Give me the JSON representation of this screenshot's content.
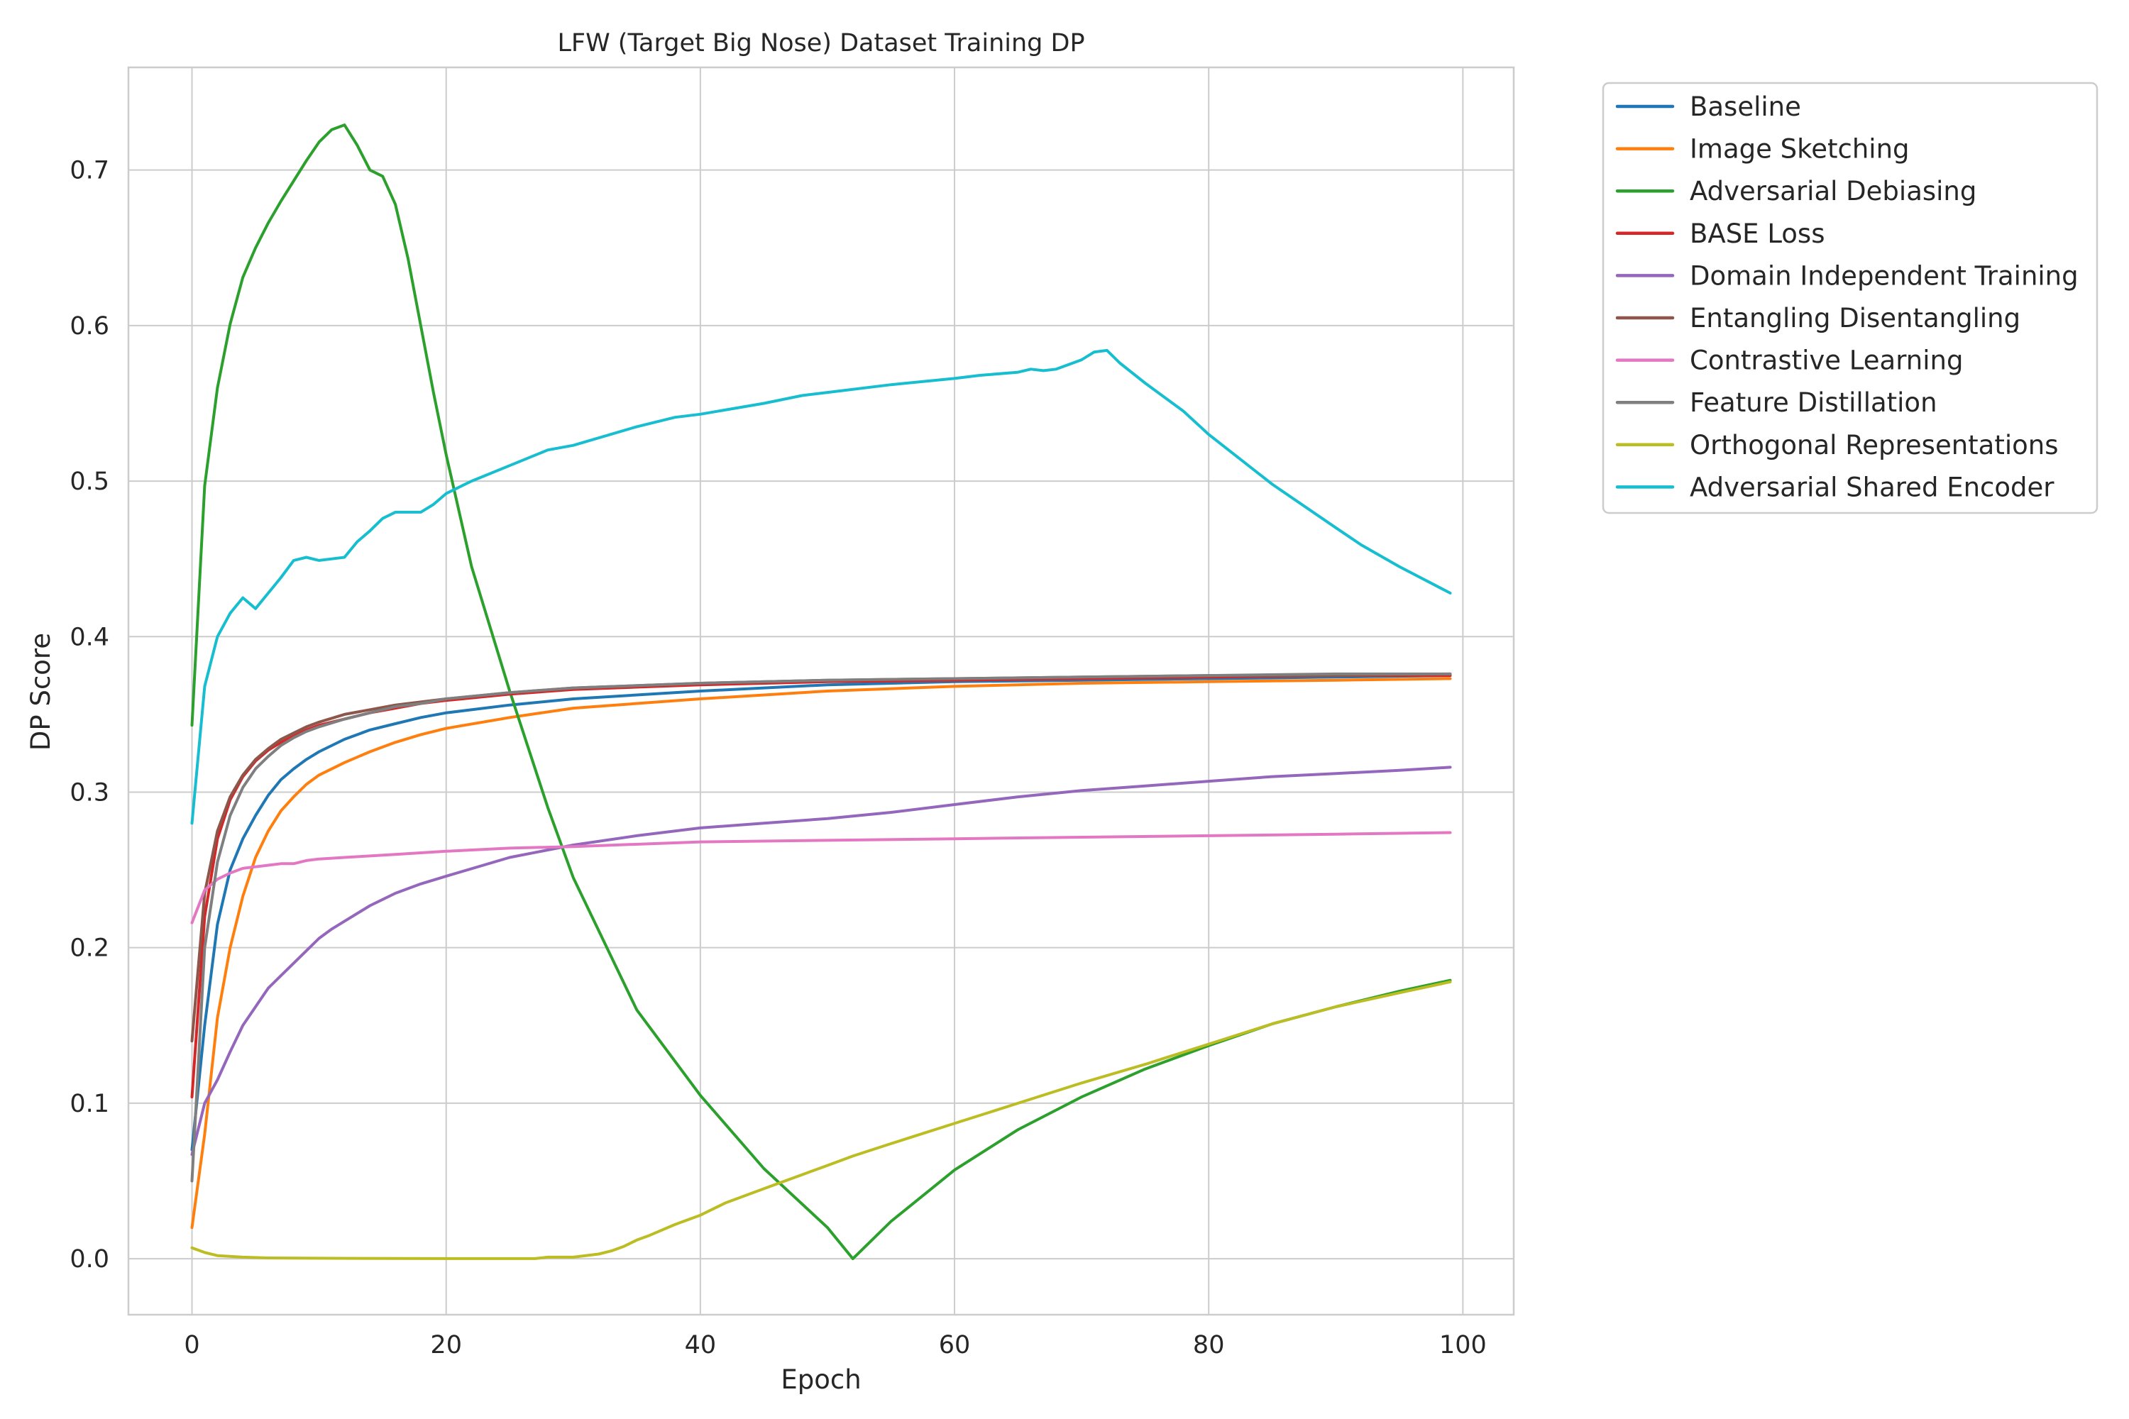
{
  "chart_data": {
    "type": "line",
    "title": "LFW (Target Big Nose) Dataset Training DP",
    "xlabel": "Epoch",
    "ylabel": "DP Score",
    "xlim": [
      -5,
      104
    ],
    "ylim": [
      -0.036,
      0.766
    ],
    "xticks": [
      0,
      20,
      40,
      60,
      80,
      100
    ],
    "yticks": [
      0.0,
      0.1,
      0.2,
      0.3,
      0.4,
      0.5,
      0.6,
      0.7
    ],
    "grid": true,
    "legend": "outside-top-right",
    "series": [
      {
        "name": "Baseline",
        "color": "#1f77b4",
        "points": [
          [
            0,
            0.07
          ],
          [
            1,
            0.15
          ],
          [
            2,
            0.215
          ],
          [
            3,
            0.25
          ],
          [
            4,
            0.27
          ],
          [
            5,
            0.285
          ],
          [
            6,
            0.298
          ],
          [
            7,
            0.308
          ],
          [
            8,
            0.315
          ],
          [
            9,
            0.321
          ],
          [
            10,
            0.326
          ],
          [
            12,
            0.334
          ],
          [
            14,
            0.34
          ],
          [
            16,
            0.344
          ],
          [
            18,
            0.348
          ],
          [
            20,
            0.351
          ],
          [
            25,
            0.356
          ],
          [
            30,
            0.36
          ],
          [
            40,
            0.365
          ],
          [
            50,
            0.369
          ],
          [
            60,
            0.371
          ],
          [
            70,
            0.372
          ],
          [
            80,
            0.373
          ],
          [
            90,
            0.374
          ],
          [
            99,
            0.375
          ]
        ]
      },
      {
        "name": "Image Sketching",
        "color": "#ff7f0e",
        "points": [
          [
            0,
            0.02
          ],
          [
            1,
            0.08
          ],
          [
            2,
            0.155
          ],
          [
            3,
            0.2
          ],
          [
            4,
            0.233
          ],
          [
            5,
            0.258
          ],
          [
            6,
            0.275
          ],
          [
            7,
            0.288
          ],
          [
            8,
            0.297
          ],
          [
            9,
            0.305
          ],
          [
            10,
            0.311
          ],
          [
            12,
            0.319
          ],
          [
            14,
            0.326
          ],
          [
            16,
            0.332
          ],
          [
            18,
            0.337
          ],
          [
            20,
            0.341
          ],
          [
            25,
            0.348
          ],
          [
            30,
            0.354
          ],
          [
            40,
            0.36
          ],
          [
            50,
            0.365
          ],
          [
            60,
            0.368
          ],
          [
            70,
            0.37
          ],
          [
            80,
            0.371
          ],
          [
            90,
            0.372
          ],
          [
            99,
            0.373
          ]
        ]
      },
      {
        "name": "Adversarial Debiasing",
        "color": "#2ca02c",
        "points": [
          [
            0,
            0.343
          ],
          [
            1,
            0.497
          ],
          [
            2,
            0.56
          ],
          [
            3,
            0.601
          ],
          [
            4,
            0.631
          ],
          [
            5,
            0.65
          ],
          [
            6,
            0.666
          ],
          [
            7,
            0.68
          ],
          [
            8,
            0.693
          ],
          [
            9,
            0.706
          ],
          [
            10,
            0.718
          ],
          [
            11,
            0.726
          ],
          [
            12,
            0.729
          ],
          [
            13,
            0.716
          ],
          [
            14,
            0.7
          ],
          [
            15,
            0.696
          ],
          [
            16,
            0.678
          ],
          [
            17,
            0.643
          ],
          [
            18,
            0.6
          ],
          [
            19,
            0.557
          ],
          [
            20,
            0.517
          ],
          [
            22,
            0.445
          ],
          [
            25,
            0.365
          ],
          [
            28,
            0.29
          ],
          [
            30,
            0.245
          ],
          [
            35,
            0.16
          ],
          [
            40,
            0.105
          ],
          [
            45,
            0.058
          ],
          [
            50,
            0.02
          ],
          [
            52,
            0.0
          ],
          [
            55,
            0.024
          ],
          [
            60,
            0.057
          ],
          [
            65,
            0.083
          ],
          [
            70,
            0.104
          ],
          [
            75,
            0.122
          ],
          [
            80,
            0.137
          ],
          [
            85,
            0.151
          ],
          [
            90,
            0.162
          ],
          [
            95,
            0.172
          ],
          [
            99,
            0.179
          ]
        ]
      },
      {
        "name": "BASE Loss",
        "color": "#d62728",
        "points": [
          [
            0,
            0.104
          ],
          [
            1,
            0.22
          ],
          [
            2,
            0.27
          ],
          [
            3,
            0.295
          ],
          [
            4,
            0.31
          ],
          [
            5,
            0.32
          ],
          [
            6,
            0.327
          ],
          [
            7,
            0.332
          ],
          [
            8,
            0.336
          ],
          [
            9,
            0.34
          ],
          [
            10,
            0.343
          ],
          [
            12,
            0.347
          ],
          [
            14,
            0.351
          ],
          [
            16,
            0.354
          ],
          [
            18,
            0.357
          ],
          [
            20,
            0.359
          ],
          [
            25,
            0.363
          ],
          [
            30,
            0.366
          ],
          [
            40,
            0.369
          ],
          [
            50,
            0.371
          ],
          [
            60,
            0.372
          ],
          [
            70,
            0.373
          ],
          [
            80,
            0.374
          ],
          [
            90,
            0.375
          ],
          [
            99,
            0.375
          ]
        ]
      },
      {
        "name": "Domain Independent Training",
        "color": "#9467bd",
        "points": [
          [
            0,
            0.067
          ],
          [
            1,
            0.1
          ],
          [
            2,
            0.115
          ],
          [
            3,
            0.133
          ],
          [
            4,
            0.15
          ],
          [
            5,
            0.162
          ],
          [
            6,
            0.174
          ],
          [
            7,
            0.182
          ],
          [
            8,
            0.19
          ],
          [
            9,
            0.198
          ],
          [
            10,
            0.206
          ],
          [
            11,
            0.212
          ],
          [
            12,
            0.217
          ],
          [
            14,
            0.227
          ],
          [
            16,
            0.235
          ],
          [
            18,
            0.241
          ],
          [
            20,
            0.246
          ],
          [
            25,
            0.258
          ],
          [
            30,
            0.266
          ],
          [
            35,
            0.272
          ],
          [
            40,
            0.277
          ],
          [
            45,
            0.28
          ],
          [
            50,
            0.283
          ],
          [
            55,
            0.287
          ],
          [
            60,
            0.292
          ],
          [
            65,
            0.297
          ],
          [
            70,
            0.301
          ],
          [
            75,
            0.304
          ],
          [
            80,
            0.307
          ],
          [
            85,
            0.31
          ],
          [
            90,
            0.312
          ],
          [
            95,
            0.314
          ],
          [
            99,
            0.316
          ]
        ]
      },
      {
        "name": "Entangling Disentangling",
        "color": "#8c564b",
        "points": [
          [
            0,
            0.14
          ],
          [
            1,
            0.235
          ],
          [
            2,
            0.275
          ],
          [
            3,
            0.297
          ],
          [
            4,
            0.311
          ],
          [
            5,
            0.321
          ],
          [
            6,
            0.328
          ],
          [
            7,
            0.334
          ],
          [
            8,
            0.338
          ],
          [
            9,
            0.342
          ],
          [
            10,
            0.345
          ],
          [
            12,
            0.35
          ],
          [
            14,
            0.353
          ],
          [
            16,
            0.356
          ],
          [
            18,
            0.358
          ],
          [
            20,
            0.36
          ],
          [
            25,
            0.364
          ],
          [
            30,
            0.367
          ],
          [
            40,
            0.37
          ],
          [
            50,
            0.372
          ],
          [
            60,
            0.373
          ],
          [
            70,
            0.374
          ],
          [
            80,
            0.375
          ],
          [
            90,
            0.375
          ],
          [
            99,
            0.376
          ]
        ]
      },
      {
        "name": "Contrastive Learning",
        "color": "#e377c2",
        "points": [
          [
            0,
            0.216
          ],
          [
            1,
            0.237
          ],
          [
            2,
            0.244
          ],
          [
            3,
            0.248
          ],
          [
            4,
            0.251
          ],
          [
            5,
            0.252
          ],
          [
            6,
            0.253
          ],
          [
            7,
            0.254
          ],
          [
            8,
            0.254
          ],
          [
            9,
            0.256
          ],
          [
            10,
            0.257
          ],
          [
            12,
            0.258
          ],
          [
            14,
            0.259
          ],
          [
            16,
            0.26
          ],
          [
            18,
            0.261
          ],
          [
            20,
            0.262
          ],
          [
            25,
            0.264
          ],
          [
            30,
            0.265
          ],
          [
            40,
            0.268
          ],
          [
            50,
            0.269
          ],
          [
            60,
            0.27
          ],
          [
            70,
            0.271
          ],
          [
            80,
            0.272
          ],
          [
            90,
            0.273
          ],
          [
            99,
            0.274
          ]
        ]
      },
      {
        "name": "Feature Distillation",
        "color": "#7f7f7f",
        "points": [
          [
            0,
            0.05
          ],
          [
            1,
            0.2
          ],
          [
            2,
            0.255
          ],
          [
            3,
            0.285
          ],
          [
            4,
            0.303
          ],
          [
            5,
            0.315
          ],
          [
            6,
            0.323
          ],
          [
            7,
            0.33
          ],
          [
            8,
            0.335
          ],
          [
            9,
            0.339
          ],
          [
            10,
            0.342
          ],
          [
            12,
            0.347
          ],
          [
            14,
            0.351
          ],
          [
            16,
            0.355
          ],
          [
            18,
            0.357
          ],
          [
            20,
            0.36
          ],
          [
            25,
            0.364
          ],
          [
            30,
            0.367
          ],
          [
            40,
            0.37
          ],
          [
            50,
            0.372
          ],
          [
            60,
            0.373
          ],
          [
            70,
            0.374
          ],
          [
            80,
            0.375
          ],
          [
            90,
            0.376
          ],
          [
            99,
            0.376
          ]
        ]
      },
      {
        "name": "Orthogonal Representations",
        "color": "#bcbd22",
        "points": [
          [
            0,
            0.007
          ],
          [
            1,
            0.004
          ],
          [
            2,
            0.002
          ],
          [
            4,
            0.001
          ],
          [
            6,
            0.0005
          ],
          [
            10,
            0.0003
          ],
          [
            20,
            0.0001
          ],
          [
            27,
            0.0001
          ],
          [
            28,
            0.001
          ],
          [
            30,
            0.001
          ],
          [
            32,
            0.003
          ],
          [
            33,
            0.005
          ],
          [
            34,
            0.008
          ],
          [
            35,
            0.012
          ],
          [
            36,
            0.015
          ],
          [
            38,
            0.022
          ],
          [
            40,
            0.028
          ],
          [
            42,
            0.036
          ],
          [
            45,
            0.045
          ],
          [
            48,
            0.054
          ],
          [
            50,
            0.06
          ],
          [
            52,
            0.066
          ],
          [
            55,
            0.074
          ],
          [
            60,
            0.087
          ],
          [
            65,
            0.1
          ],
          [
            70,
            0.113
          ],
          [
            75,
            0.125
          ],
          [
            80,
            0.138
          ],
          [
            85,
            0.151
          ],
          [
            90,
            0.162
          ],
          [
            95,
            0.171
          ],
          [
            99,
            0.178
          ]
        ]
      },
      {
        "name": "Adversarial Shared Encoder",
        "color": "#17becf",
        "points": [
          [
            0,
            0.28
          ],
          [
            1,
            0.368
          ],
          [
            2,
            0.4
          ],
          [
            3,
            0.415
          ],
          [
            4,
            0.425
          ],
          [
            5,
            0.418
          ],
          [
            6,
            0.428
          ],
          [
            7,
            0.438
          ],
          [
            8,
            0.449
          ],
          [
            9,
            0.451
          ],
          [
            10,
            0.449
          ],
          [
            11,
            0.45
          ],
          [
            12,
            0.451
          ],
          [
            13,
            0.461
          ],
          [
            14,
            0.468
          ],
          [
            15,
            0.476
          ],
          [
            16,
            0.48
          ],
          [
            17,
            0.48
          ],
          [
            18,
            0.48
          ],
          [
            19,
            0.485
          ],
          [
            20,
            0.492
          ],
          [
            22,
            0.5
          ],
          [
            25,
            0.51
          ],
          [
            28,
            0.52
          ],
          [
            30,
            0.523
          ],
          [
            35,
            0.535
          ],
          [
            38,
            0.541
          ],
          [
            40,
            0.543
          ],
          [
            45,
            0.55
          ],
          [
            48,
            0.555
          ],
          [
            50,
            0.557
          ],
          [
            55,
            0.562
          ],
          [
            60,
            0.566
          ],
          [
            62,
            0.568
          ],
          [
            65,
            0.57
          ],
          [
            66,
            0.572
          ],
          [
            67,
            0.571
          ],
          [
            68,
            0.572
          ],
          [
            70,
            0.578
          ],
          [
            71,
            0.583
          ],
          [
            72,
            0.584
          ],
          [
            73,
            0.576
          ],
          [
            75,
            0.563
          ],
          [
            78,
            0.545
          ],
          [
            80,
            0.53
          ],
          [
            85,
            0.498
          ],
          [
            90,
            0.47
          ],
          [
            92,
            0.459
          ],
          [
            95,
            0.445
          ],
          [
            99,
            0.428
          ]
        ]
      }
    ]
  }
}
